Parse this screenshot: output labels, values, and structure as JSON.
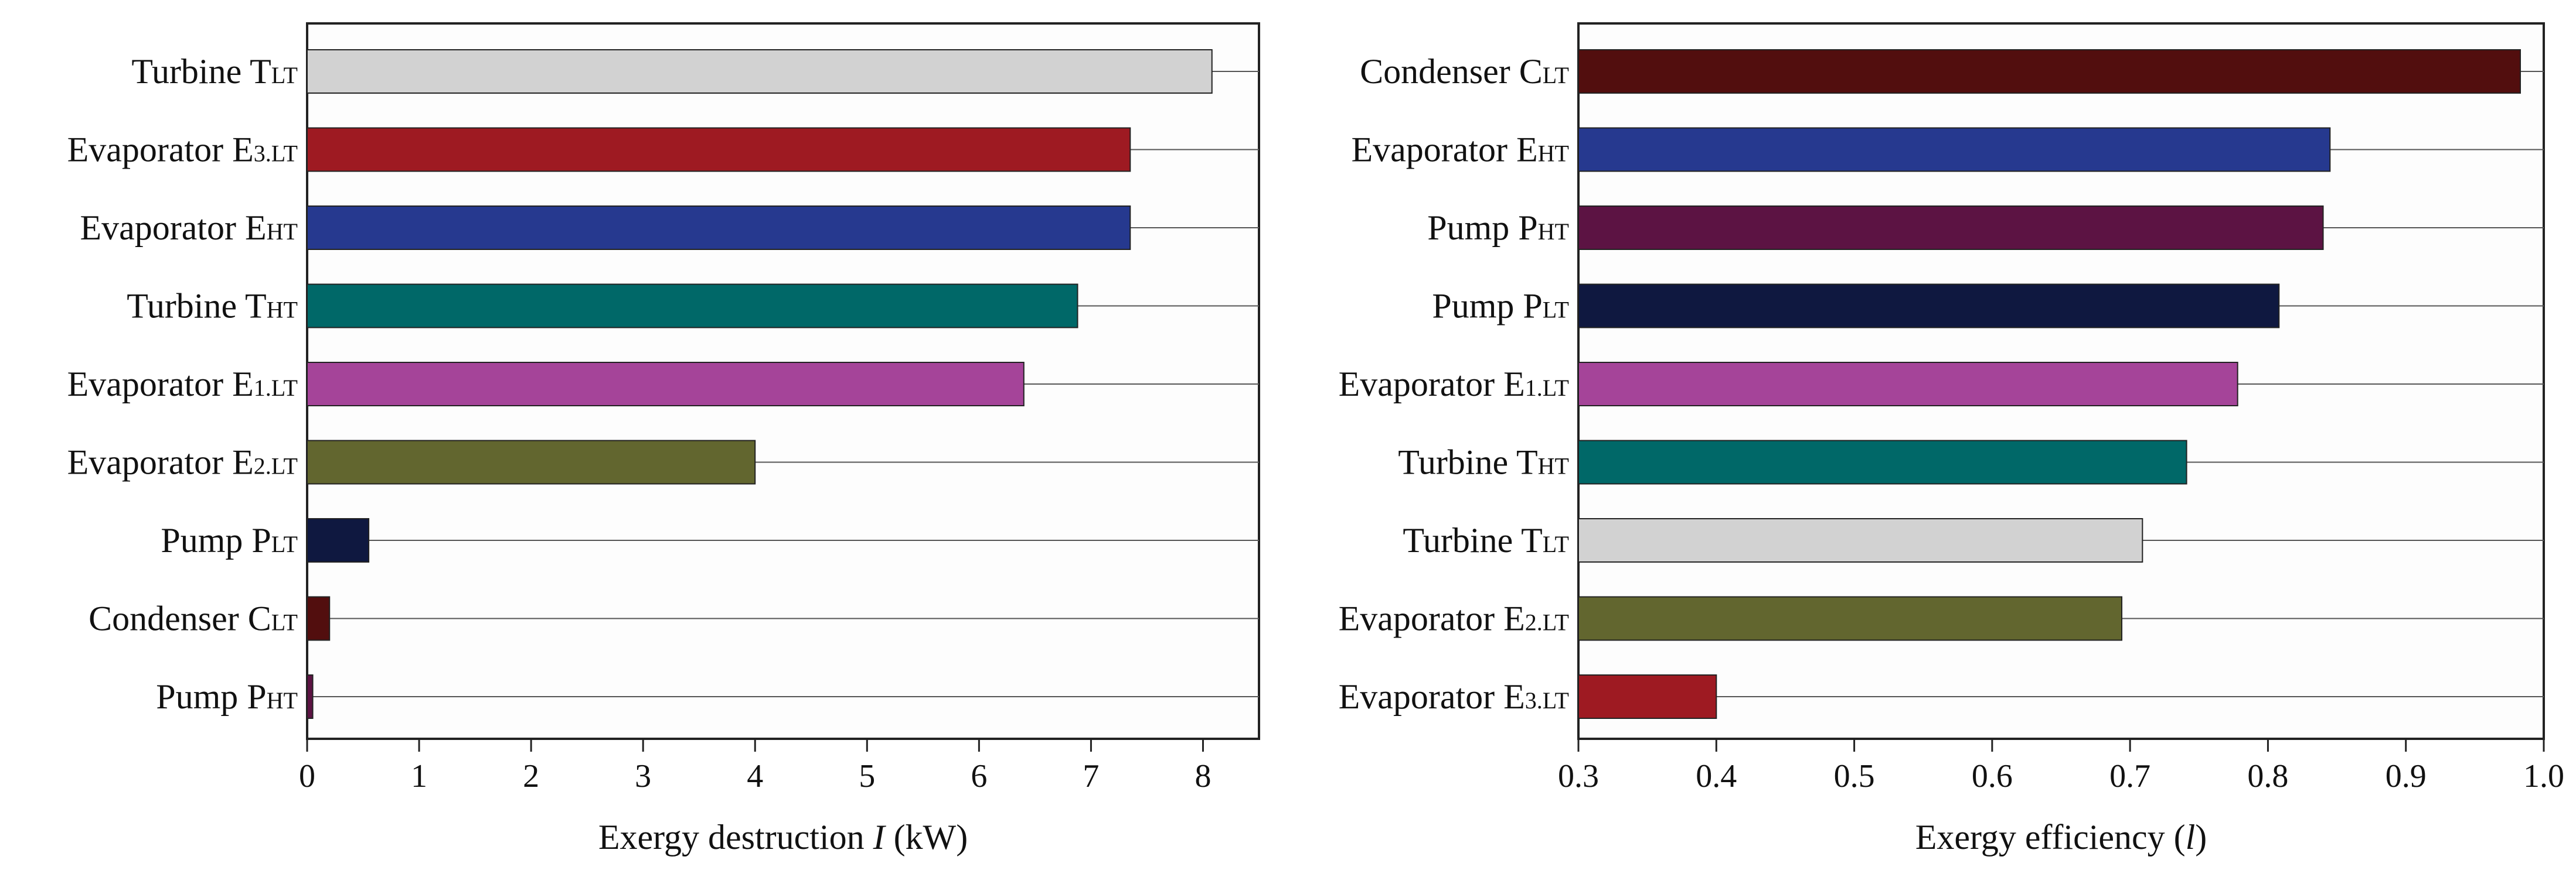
{
  "chart_data": [
    {
      "type": "bar",
      "orientation": "horizontal",
      "categories": [
        {
          "main": "Turbine T",
          "sub": "LT"
        },
        {
          "main": "Evaporator E",
          "sub": "3.LT"
        },
        {
          "main": "Evaporator E",
          "sub": "HT"
        },
        {
          "main": "Turbine T",
          "sub": "HT"
        },
        {
          "main": "Evaporator E",
          "sub": "1.LT"
        },
        {
          "main": "Evaporator E",
          "sub": "2.LT"
        },
        {
          "main": "Pump P",
          "sub": "LT"
        },
        {
          "main": "Condenser C",
          "sub": "LT"
        },
        {
          "main": "Pump P",
          "sub": "HT"
        }
      ],
      "values": [
        8.08,
        7.35,
        7.35,
        6.88,
        6.4,
        4.0,
        0.55,
        0.2,
        0.05
      ],
      "colors": [
        "#d2d2d2",
        "#9e1a22",
        "#26398f",
        "#006868",
        "#a54499",
        "#62662f",
        "#0f1840",
        "#520e0e",
        "#5c1343"
      ],
      "xlabel": {
        "prefix": "Exergy destruction ",
        "italic": "I",
        "suffix": " (kW)"
      },
      "xlim": [
        0,
        8.5
      ],
      "xticks": [
        "0",
        "1",
        "2",
        "3",
        "4",
        "5",
        "6",
        "7",
        "8"
      ],
      "tick_values": [
        0,
        1,
        2,
        3,
        4,
        5,
        6,
        7,
        8
      ],
      "grid": "horizontal reference line per category",
      "legend": "none"
    },
    {
      "type": "bar",
      "orientation": "horizontal",
      "categories": [
        {
          "main": "Condenser C",
          "sub": "LT"
        },
        {
          "main": "Evaporator E",
          "sub": "HT"
        },
        {
          "main": "Pump P",
          "sub": "HT"
        },
        {
          "main": "Pump P",
          "sub": "LT"
        },
        {
          "main": "Evaporator E",
          "sub": "1.LT"
        },
        {
          "main": "Turbine T",
          "sub": "HT"
        },
        {
          "main": "Turbine T",
          "sub": "LT"
        },
        {
          "main": "Evaporator E",
          "sub": "2.LT"
        },
        {
          "main": "Evaporator E",
          "sub": "3.LT"
        }
      ],
      "values": [
        0.983,
        0.845,
        0.84,
        0.808,
        0.778,
        0.741,
        0.709,
        0.694,
        0.4
      ],
      "colors": [
        "#520e0e",
        "#26398f",
        "#5c1343",
        "#0f1840",
        "#a54499",
        "#006868",
        "#d2d2d2",
        "#62662f",
        "#9e1a22"
      ],
      "xlabel": {
        "prefix": "Exergy efficiency (",
        "italic": "l",
        "suffix": ")"
      },
      "xlim": [
        0.3,
        1.0
      ],
      "xticks": [
        "0.3",
        "0.4",
        "0.5",
        "0.6",
        "0.7",
        "0.8",
        "0.9",
        "1.0"
      ],
      "tick_values": [
        0.3,
        0.4,
        0.5,
        0.6,
        0.7,
        0.8,
        0.9,
        1.0
      ],
      "grid": "horizontal reference line per category",
      "legend": "none"
    }
  ]
}
